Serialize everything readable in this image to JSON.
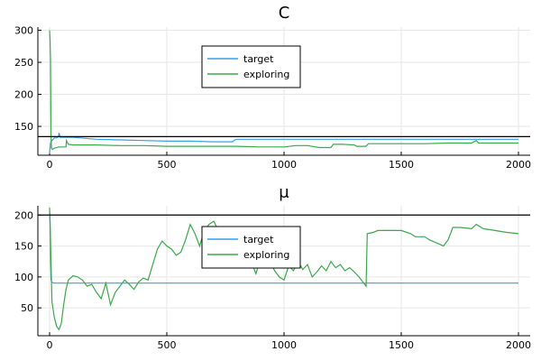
{
  "chart_data": [
    {
      "type": "line",
      "title": "C",
      "xlabel": "",
      "ylabel": "",
      "xlim": [
        -50,
        2050
      ],
      "ylim": [
        105,
        305
      ],
      "xticks": [
        0,
        500,
        1000,
        1500,
        2000
      ],
      "yticks": [
        150,
        200,
        250,
        300
      ],
      "grid": true,
      "legend": "top-center",
      "hline": {
        "y": 134,
        "color": "#000000"
      },
      "series": [
        {
          "name": "target",
          "color": "#3a9fe0",
          "points": [
            [
              0,
              108
            ],
            [
              3,
              120
            ],
            [
              5,
              125
            ],
            [
              10,
              128
            ],
            [
              15,
              130
            ],
            [
              20,
              132
            ],
            [
              30,
              132
            ],
            [
              38,
              134
            ],
            [
              40,
              140
            ],
            [
              45,
              133
            ],
            [
              60,
              133
            ],
            [
              100,
              133
            ],
            [
              200,
              130
            ],
            [
              300,
              129
            ],
            [
              400,
              128
            ],
            [
              500,
              127
            ],
            [
              600,
              127
            ],
            [
              700,
              126
            ],
            [
              780,
              126
            ],
            [
              790,
              129
            ],
            [
              800,
              130
            ],
            [
              900,
              130
            ],
            [
              1000,
              130
            ],
            [
              1200,
              130
            ],
            [
              1400,
              130
            ],
            [
              1600,
              130
            ],
            [
              1800,
              130
            ],
            [
              2000,
              130
            ]
          ]
        },
        {
          "name": "exploring",
          "color": "#3aa84c",
          "points": [
            [
              0,
              300
            ],
            [
              2,
              285
            ],
            [
              4,
              255
            ],
            [
              6,
              135
            ],
            [
              8,
              116
            ],
            [
              12,
              114
            ],
            [
              20,
              116
            ],
            [
              40,
              118
            ],
            [
              70,
              118
            ],
            [
              72,
              128
            ],
            [
              80,
              122
            ],
            [
              100,
              121
            ],
            [
              150,
              121
            ],
            [
              200,
              121
            ],
            [
              300,
              120
            ],
            [
              400,
              120
            ],
            [
              500,
              119
            ],
            [
              600,
              119
            ],
            [
              700,
              119
            ],
            [
              800,
              119
            ],
            [
              900,
              118
            ],
            [
              1000,
              118
            ],
            [
              1050,
              120
            ],
            [
              1100,
              120
            ],
            [
              1150,
              117
            ],
            [
              1200,
              117
            ],
            [
              1210,
              122
            ],
            [
              1250,
              122
            ],
            [
              1300,
              121
            ],
            [
              1310,
              119
            ],
            [
              1350,
              119
            ],
            [
              1360,
              123
            ],
            [
              1400,
              123
            ],
            [
              1500,
              123
            ],
            [
              1600,
              123
            ],
            [
              1700,
              124
            ],
            [
              1800,
              124
            ],
            [
              1820,
              128
            ],
            [
              1830,
              124
            ],
            [
              1900,
              124
            ],
            [
              2000,
              124
            ]
          ]
        }
      ]
    },
    {
      "type": "line",
      "title": "μ",
      "xlabel": "",
      "ylabel": "",
      "xlim": [
        -50,
        2050
      ],
      "ylim": [
        5,
        215
      ],
      "xticks": [
        0,
        500,
        1000,
        1500,
        2000
      ],
      "yticks": [
        50,
        100,
        150,
        200
      ],
      "grid": true,
      "legend": "top-center",
      "hline": {
        "y": 200,
        "color": "#000000"
      },
      "series": [
        {
          "name": "target",
          "color": "#3a9fe0",
          "points": [
            [
              0,
              205
            ],
            [
              2,
              190
            ],
            [
              4,
              130
            ],
            [
              6,
              95
            ],
            [
              10,
              91
            ],
            [
              20,
              90
            ],
            [
              100,
              90
            ],
            [
              500,
              90
            ],
            [
              1000,
              90
            ],
            [
              1500,
              90
            ],
            [
              2000,
              90
            ]
          ]
        },
        {
          "name": "exploring",
          "color": "#3aa84c",
          "points": [
            [
              0,
              212
            ],
            [
              3,
              175
            ],
            [
              6,
              125
            ],
            [
              10,
              60
            ],
            [
              20,
              35
            ],
            [
              30,
              20
            ],
            [
              40,
              15
            ],
            [
              50,
              25
            ],
            [
              60,
              55
            ],
            [
              70,
              80
            ],
            [
              80,
              95
            ],
            [
              100,
              102
            ],
            [
              120,
              100
            ],
            [
              140,
              95
            ],
            [
              160,
              85
            ],
            [
              180,
              88
            ],
            [
              200,
              75
            ],
            [
              220,
              65
            ],
            [
              240,
              90
            ],
            [
              260,
              55
            ],
            [
              280,
              75
            ],
            [
              300,
              85
            ],
            [
              320,
              95
            ],
            [
              340,
              88
            ],
            [
              360,
              80
            ],
            [
              380,
              92
            ],
            [
              400,
              98
            ],
            [
              420,
              95
            ],
            [
              440,
              120
            ],
            [
              460,
              145
            ],
            [
              480,
              158
            ],
            [
              500,
              150
            ],
            [
              520,
              145
            ],
            [
              540,
              135
            ],
            [
              560,
              140
            ],
            [
              580,
              160
            ],
            [
              600,
              185
            ],
            [
              620,
              170
            ],
            [
              640,
              150
            ],
            [
              660,
              175
            ],
            [
              680,
              185
            ],
            [
              700,
              190
            ],
            [
              720,
              175
            ],
            [
              740,
              150
            ],
            [
              760,
              160
            ],
            [
              780,
              140
            ],
            [
              800,
              150
            ],
            [
              820,
              135
            ],
            [
              840,
              140
            ],
            [
              860,
              125
            ],
            [
              880,
              105
            ],
            [
              900,
              130
            ],
            [
              920,
              115
            ],
            [
              940,
              125
            ],
            [
              960,
              110
            ],
            [
              980,
              100
            ],
            [
              1000,
              95
            ],
            [
              1020,
              118
            ],
            [
              1040,
              110
            ],
            [
              1060,
              125
            ],
            [
              1080,
              112
            ],
            [
              1100,
              120
            ],
            [
              1120,
              100
            ],
            [
              1140,
              108
            ],
            [
              1160,
              118
            ],
            [
              1180,
              110
            ],
            [
              1200,
              125
            ],
            [
              1220,
              115
            ],
            [
              1240,
              120
            ],
            [
              1260,
              110
            ],
            [
              1280,
              115
            ],
            [
              1300,
              108
            ],
            [
              1320,
              100
            ],
            [
              1340,
              90
            ],
            [
              1350,
              85
            ],
            [
              1355,
              170
            ],
            [
              1380,
              172
            ],
            [
              1400,
              175
            ],
            [
              1450,
              175
            ],
            [
              1500,
              175
            ],
            [
              1540,
              170
            ],
            [
              1560,
              165
            ],
            [
              1600,
              165
            ],
            [
              1620,
              160
            ],
            [
              1650,
              155
            ],
            [
              1680,
              150
            ],
            [
              1700,
              160
            ],
            [
              1720,
              180
            ],
            [
              1750,
              180
            ],
            [
              1800,
              178
            ],
            [
              1820,
              185
            ],
            [
              1850,
              178
            ],
            [
              1900,
              175
            ],
            [
              1950,
              172
            ],
            [
              2000,
              170
            ]
          ]
        }
      ]
    }
  ]
}
